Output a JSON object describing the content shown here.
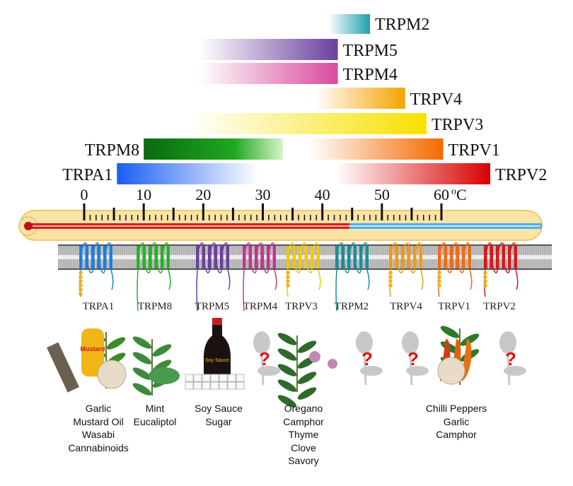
{
  "scale": {
    "unit": "oC",
    "min": 0,
    "max": 60,
    "major_step": 10,
    "minor_step": 1,
    "tick_labels": [
      "0",
      "10",
      "20",
      "30",
      "40",
      "50",
      "60"
    ]
  },
  "body_temperature_c": 37,
  "channels": [
    {
      "name": "TRPM2",
      "range_c": [
        41,
        48
      ],
      "color": "#1fa0b0",
      "fade": "left",
      "label_side": "right"
    },
    {
      "name": "TRPM5",
      "range_c": [
        19.4,
        42.6
      ],
      "color": "#6b3f9e",
      "fade": "left",
      "label_side": "right"
    },
    {
      "name": "TRPM4",
      "range_c": [
        19.4,
        42.6
      ],
      "color": "#d84b9c",
      "fade": "left",
      "label_side": "right"
    },
    {
      "name": "TRPV4",
      "range_c": [
        38.7,
        53.9
      ],
      "color": "#f5a300",
      "fade": "left",
      "label_side": "right"
    },
    {
      "name": "TRPV3",
      "range_c": [
        17.9,
        57.5
      ],
      "color": "#f7e000",
      "fade": "left",
      "label_side": "right"
    },
    {
      "name": "TRPM8",
      "range_c": [
        10,
        33.4
      ],
      "color": "#0a6a10",
      "fade": "right",
      "label_side": "left"
    },
    {
      "name": "TRPV1",
      "range_c": [
        37.8,
        60.3
      ],
      "color": "#f36a00",
      "fade": "left",
      "label_side": "right"
    },
    {
      "name": "TRPA1",
      "range_c": [
        5.5,
        29.2
      ],
      "color": "#1a5ef0",
      "fade": "right",
      "label_side": "left"
    },
    {
      "name": "TRPV2",
      "range_c": [
        42.3,
        68.2
      ],
      "color": "#d80000",
      "fade": "left",
      "label_side": "right"
    }
  ],
  "membrane_channels": [
    {
      "name": "TRPA1",
      "color": "#1a7fe0",
      "ankyrin": true
    },
    {
      "name": "TRPM8",
      "color": "#22b422",
      "ankyrin": false
    },
    {
      "name": "TRPM5",
      "color": "#6b3f9e",
      "ankyrin": false
    },
    {
      "name": "TRPM4",
      "color": "#c2358f",
      "ankyrin": false
    },
    {
      "name": "TRPV3",
      "color": "#f2c800",
      "ankyrin": true
    },
    {
      "name": "TRPM2",
      "color": "#1a8e98",
      "ankyrin": false
    },
    {
      "name": "TRPV4",
      "color": "#f29a10",
      "ankyrin": true
    },
    {
      "name": "TRPV1",
      "color": "#f06a10",
      "ankyrin": true
    },
    {
      "name": "TRPV2",
      "color": "#d81818",
      "ankyrin": true
    }
  ],
  "sources": [
    {
      "items": [
        "Garlic",
        "Mustard Oil",
        "Wasabi",
        "Cannabinoids"
      ]
    },
    {
      "items": [
        "Mint",
        "Eucaliptol"
      ]
    },
    {
      "items": [
        "Soy Sauce",
        "Sugar"
      ]
    },
    {
      "items": [
        "Oregano",
        "Camphor",
        "Thyme",
        "Clove",
        "Savory"
      ]
    },
    {
      "items": [
        "Chilli Peppers",
        "Garlic",
        "Camphor"
      ]
    }
  ],
  "logo_text": {
    "mustard": "Mustard",
    "soy": "Soy Sauce"
  },
  "unknown_marker": "?"
}
